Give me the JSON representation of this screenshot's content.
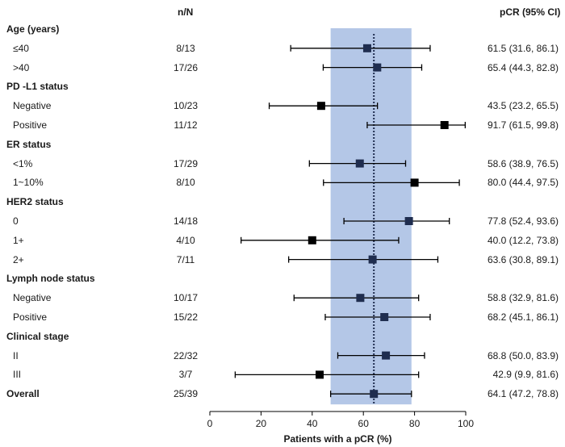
{
  "colors": {
    "band": "#b4c7e7",
    "marker_dark": "#1f2d4f",
    "marker_black": "#000000",
    "line": "#000000"
  },
  "chart_data": {
    "type": "forest",
    "xlabel": "Patients with a pCR (%)",
    "xlim": [
      0,
      100
    ],
    "xticks": [
      0,
      20,
      40,
      60,
      80,
      100
    ],
    "header_n": "n/N",
    "header_pcr": "pCR (95% CI)",
    "reference_value": 64.1,
    "reference_band": [
      47.2,
      78.8
    ],
    "groups": [
      {
        "label": "Age (years)",
        "rows": [
          {
            "label": "≤40",
            "n": "8/13",
            "pcr": 61.5,
            "lo": 31.6,
            "hi": 86.1,
            "ci_text": "61.5 (31.6, 86.1)",
            "dark": true
          },
          {
            "label": ">40",
            "n": "17/26",
            "pcr": 65.4,
            "lo": 44.3,
            "hi": 82.8,
            "ci_text": "65.4 (44.3, 82.8)",
            "dark": true
          }
        ]
      },
      {
        "label": "PD -L1 status",
        "rows": [
          {
            "label": "Negative",
            "n": "10/23",
            "pcr": 43.5,
            "lo": 23.2,
            "hi": 65.5,
            "ci_text": "43.5 (23.2, 65.5)",
            "dark": false
          },
          {
            "label": "Positive",
            "n": "11/12",
            "pcr": 91.7,
            "lo": 61.5,
            "hi": 99.8,
            "ci_text": "91.7 (61.5, 99.8)",
            "dark": false
          }
        ]
      },
      {
        "label": "ER status",
        "rows": [
          {
            "label": "<1%",
            "n": "17/29",
            "pcr": 58.6,
            "lo": 38.9,
            "hi": 76.5,
            "ci_text": "58.6 (38.9, 76.5)",
            "dark": true
          },
          {
            "label": "1~10%",
            "n": "8/10",
            "pcr": 80.0,
            "lo": 44.4,
            "hi": 97.5,
            "ci_text": "80.0 (44.4, 97.5)",
            "dark": false
          }
        ]
      },
      {
        "label": "HER2 status",
        "rows": [
          {
            "label": "0",
            "n": "14/18",
            "pcr": 77.8,
            "lo": 52.4,
            "hi": 93.6,
            "ci_text": "77.8 (52.4, 93.6)",
            "dark": true
          },
          {
            "label": "1+",
            "n": "4/10",
            "pcr": 40.0,
            "lo": 12.2,
            "hi": 73.8,
            "ci_text": "40.0 (12.2, 73.8)",
            "dark": false
          },
          {
            "label": "2+",
            "n": "7/11",
            "pcr": 63.6,
            "lo": 30.8,
            "hi": 89.1,
            "ci_text": "63.6 (30.8, 89.1)",
            "dark": true
          }
        ]
      },
      {
        "label": "Lymph node status",
        "rows": [
          {
            "label": "Negative",
            "n": "10/17",
            "pcr": 58.8,
            "lo": 32.9,
            "hi": 81.6,
            "ci_text": "58.8 (32.9, 81.6)",
            "dark": true
          },
          {
            "label": "Positive",
            "n": "15/22",
            "pcr": 68.2,
            "lo": 45.1,
            "hi": 86.1,
            "ci_text": "68.2 (45.1, 86.1)",
            "dark": true
          }
        ]
      },
      {
        "label": "Clinical stage",
        "rows": [
          {
            "label": "II",
            "n": "22/32",
            "pcr": 68.8,
            "lo": 50.0,
            "hi": 83.9,
            "ci_text": "68.8 (50.0, 83.9)",
            "dark": true
          },
          {
            "label": "III",
            "n": "3/7",
            "pcr": 42.9,
            "lo": 9.9,
            "hi": 81.6,
            "ci_text": "42.9 (9.9, 81.6)",
            "dark": false
          }
        ]
      }
    ],
    "overall": {
      "label": "Overall",
      "n": "25/39",
      "pcr": 64.1,
      "lo": 47.2,
      "hi": 78.8,
      "ci_text": "64.1 (47.2, 78.8)",
      "dark": true
    }
  }
}
